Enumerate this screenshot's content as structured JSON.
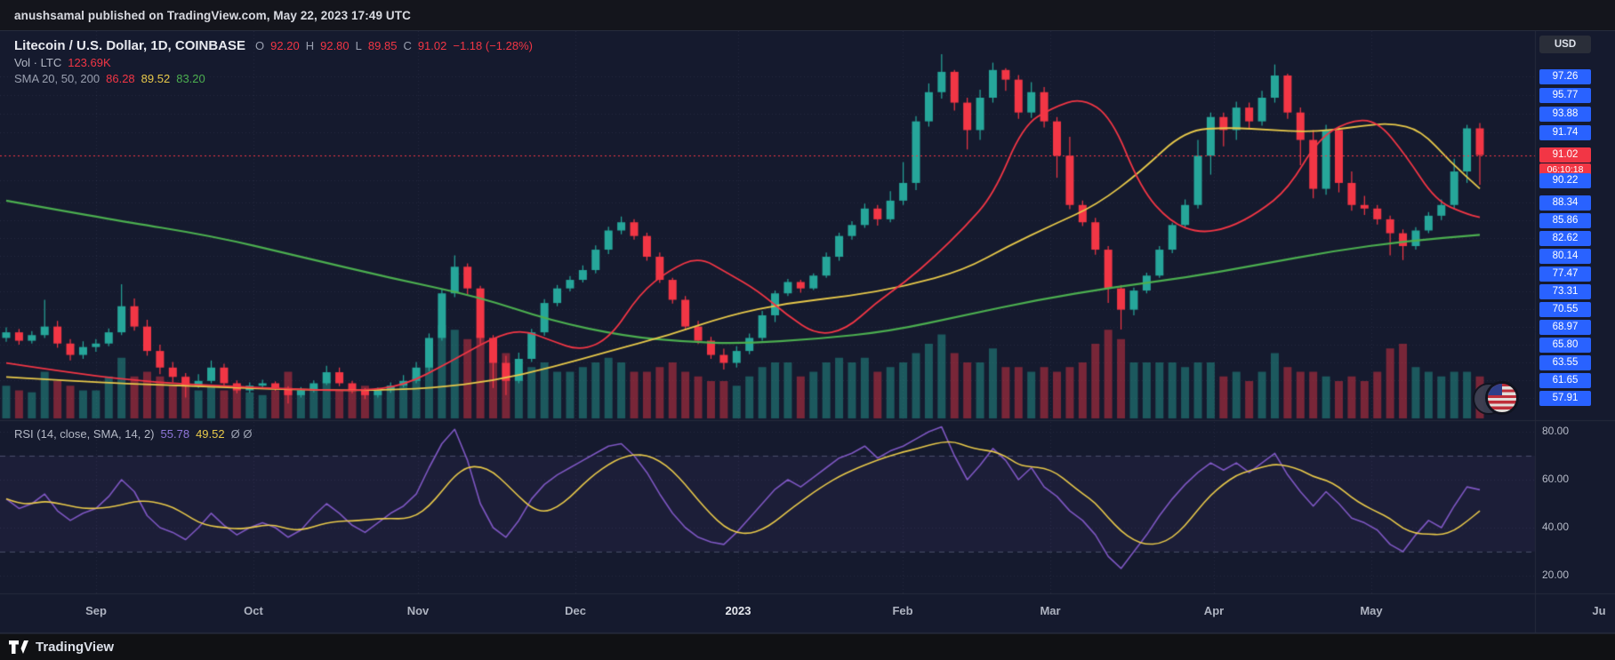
{
  "attribution_bar": {
    "text": "anushsamal published on TradingView.com, May 22, 2023 17:49 UTC"
  },
  "footer": {
    "brand": "TradingView"
  },
  "legend": {
    "symbol": "Litecoin / U.S. Dollar, 1D, COINBASE",
    "open_label": "O",
    "open": "92.20",
    "high_label": "H",
    "high": "92.80",
    "low_label": "L",
    "low": "89.85",
    "close_label": "C",
    "close": "91.02",
    "change": "−1.18 (−1.28%)",
    "vol_label": "Vol · LTC",
    "vol_value": "123.69K",
    "sma_label": "SMA 20, 50, 200",
    "sma20": "86.28",
    "sma50": "89.52",
    "sma200": "83.20"
  },
  "rsi_legend": {
    "label": "RSI (14, close, SMA, 14, 2)",
    "value": "55.78",
    "sma_value": "49.52",
    "bands": "Ø Ø"
  },
  "axes": {
    "currency": "USD",
    "price_labels": [
      "97.26",
      "95.77",
      "93.88",
      "91.74",
      "90.22",
      "88.34",
      "85.86",
      "82.62",
      "80.14",
      "77.47",
      "73.31",
      "70.55",
      "68.97",
      "65.80",
      "63.55",
      "61.65",
      "57.91"
    ],
    "last_price": "91.02",
    "countdown": "06:10:18",
    "rsi_labels": [
      "80.00",
      "60.00",
      "40.00",
      "20.00"
    ],
    "time_labels": [
      "Sep",
      "Oct",
      "Nov",
      "Dec",
      "2023",
      "Feb",
      "Mar",
      "Apr",
      "May",
      "Ju"
    ]
  },
  "colors": {
    "up": "#26a69a",
    "down": "#f23645",
    "sma20": "#f23645",
    "sma50": "#e8c94a",
    "sma200": "#4caf50",
    "rsi": "#7e57c2",
    "rsi_sma": "#e8c94a",
    "axis_chip": "#2962ff",
    "last_chip": "#f23645"
  },
  "chart_data": {
    "type": "candlestick",
    "symbol": "LTC/USD",
    "exchange": "COINBASE",
    "interval": "1D",
    "title": "Litecoin / U.S. Dollar, 1D, COINBASE",
    "last_bar": {
      "open": 92.2,
      "high": 92.8,
      "low": 89.85,
      "close": 91.02,
      "change": -1.18,
      "change_pct": -1.28
    },
    "volume_last": "123.69K",
    "sma_last": {
      "sma20": 86.28,
      "sma50": 89.52,
      "sma200": 83.2
    },
    "rsi_last": {
      "rsi": 55.78,
      "sma": 49.52
    },
    "price_axis_ticks": [
      97.26,
      95.77,
      93.88,
      91.74,
      90.22,
      88.34,
      85.86,
      82.62,
      80.14,
      77.47,
      73.31,
      70.55,
      68.97,
      65.8,
      63.55,
      61.65,
      57.91
    ],
    "rsi_axis_ticks": [
      80,
      60,
      40,
      20
    ],
    "rsi_band_levels": [
      70,
      30
    ],
    "x_axis_labels": [
      "Sep",
      "Oct",
      "Nov",
      "Dec",
      "2023",
      "Feb",
      "Mar",
      "Apr",
      "May",
      "Jun"
    ],
    "candles": [
      [
        67,
        68.9,
        66.3,
        68,
        0.35
      ],
      [
        68,
        68.6,
        65.8,
        66.5,
        0.3
      ],
      [
        66.5,
        68.2,
        66,
        67.5,
        0.28
      ],
      [
        67.5,
        72,
        67,
        69,
        0.5
      ],
      [
        69,
        69.5,
        65.4,
        66,
        0.4
      ],
      [
        66,
        66.8,
        63.8,
        64.5,
        0.35
      ],
      [
        64.5,
        66.4,
        64,
        65.5,
        0.3
      ],
      [
        65.5,
        66.8,
        64.9,
        66,
        0.3
      ],
      [
        66,
        68.7,
        65.6,
        68,
        0.45
      ],
      [
        68,
        75,
        67.5,
        71,
        0.65
      ],
      [
        71,
        72.2,
        68.3,
        69,
        0.45
      ],
      [
        69,
        69.6,
        64.4,
        65,
        0.5
      ],
      [
        65,
        65.8,
        62.3,
        63,
        0.45
      ],
      [
        63,
        63.6,
        61.2,
        62,
        0.35
      ],
      [
        62,
        62.4,
        58,
        60.5,
        0.45
      ],
      [
        60.5,
        62.3,
        60,
        61.5,
        0.3
      ],
      [
        61.5,
        63.8,
        61,
        63,
        0.35
      ],
      [
        63,
        63.4,
        60.4,
        61,
        0.3
      ],
      [
        61,
        61.6,
        58.9,
        59.5,
        0.35
      ],
      [
        59.5,
        61.2,
        59,
        60.5,
        0.28
      ],
      [
        60.5,
        61.7,
        59.9,
        61,
        0.25
      ],
      [
        61,
        61.4,
        59.4,
        60,
        0.3
      ],
      [
        60,
        60.4,
        56.5,
        58.5,
        0.5
      ],
      [
        58.5,
        60.2,
        58,
        59.5,
        0.3
      ],
      [
        59.5,
        61.6,
        59.1,
        61,
        0.35
      ],
      [
        61,
        63.2,
        60.6,
        62.5,
        0.4
      ],
      [
        62.5,
        63,
        60.4,
        61,
        0.3
      ],
      [
        61,
        61.5,
        58.9,
        59.5,
        0.3
      ],
      [
        59.5,
        60,
        57.6,
        58.5,
        0.35
      ],
      [
        58.5,
        60.1,
        58,
        59.5,
        0.28
      ],
      [
        59.5,
        61.2,
        59,
        60.5,
        0.3
      ],
      [
        60.5,
        62.2,
        60.1,
        61.5,
        0.35
      ],
      [
        61.5,
        63.6,
        61,
        63,
        0.45
      ],
      [
        63,
        67.8,
        62.6,
        67,
        0.8
      ],
      [
        67,
        73.9,
        66.5,
        73,
        1
      ],
      [
        73,
        80.2,
        72.4,
        78.5,
        0.95
      ],
      [
        78.5,
        79,
        72.8,
        74,
        0.85
      ],
      [
        74,
        74.6,
        65.9,
        67,
        0.9
      ],
      [
        67,
        67.5,
        60,
        63.5,
        0.85
      ],
      [
        63.5,
        64.4,
        58.5,
        61.5,
        0.7
      ],
      [
        61.5,
        64.8,
        61,
        64,
        0.5
      ],
      [
        64,
        68.6,
        63.6,
        68,
        0.55
      ],
      [
        68,
        72.1,
        67.4,
        71.5,
        0.6
      ],
      [
        71.5,
        74.8,
        71,
        74,
        0.5
      ],
      [
        74,
        76.9,
        73.3,
        76,
        0.5
      ],
      [
        76,
        78.7,
        75.4,
        78,
        0.55
      ],
      [
        78,
        81.6,
        77.5,
        81,
        0.6
      ],
      [
        81,
        84.7,
        80.4,
        84,
        0.65
      ],
      [
        84,
        86.4,
        83.3,
        85.5,
        0.6
      ],
      [
        85.5,
        86,
        82.4,
        83,
        0.5
      ],
      [
        83,
        83.6,
        79.4,
        80,
        0.5
      ],
      [
        80,
        80.6,
        75.3,
        76,
        0.55
      ],
      [
        76,
        76.5,
        71.4,
        72,
        0.6
      ],
      [
        72,
        72.6,
        68.4,
        69,
        0.5
      ],
      [
        69,
        69.5,
        65.9,
        66.5,
        0.45
      ],
      [
        66.5,
        67.2,
        64,
        64.5,
        0.4
      ],
      [
        64.5,
        65.3,
        62.8,
        63.5,
        0.4
      ],
      [
        63.5,
        65.6,
        63,
        65,
        0.35
      ],
      [
        65,
        67.8,
        64.6,
        67,
        0.45
      ],
      [
        67,
        70.4,
        66.5,
        70,
        0.55
      ],
      [
        70,
        73.5,
        69.4,
        73,
        0.6
      ],
      [
        73,
        76.2,
        72.6,
        75.5,
        0.6
      ],
      [
        75.5,
        76,
        73.1,
        74,
        0.45
      ],
      [
        74,
        77.5,
        73.6,
        77,
        0.5
      ],
      [
        77,
        80.6,
        76.5,
        80,
        0.6
      ],
      [
        80,
        83.6,
        79.4,
        83,
        0.65
      ],
      [
        83,
        85.7,
        82.4,
        85,
        0.6
      ],
      [
        85,
        88.2,
        84.5,
        87.5,
        0.65
      ],
      [
        87.5,
        88,
        84.9,
        86,
        0.5
      ],
      [
        86,
        89.3,
        85.5,
        88.5,
        0.55
      ],
      [
        88.5,
        90.8,
        88,
        90,
        0.6
      ],
      [
        90,
        93.6,
        89.4,
        93,
        0.7
      ],
      [
        93,
        96.7,
        92.4,
        96,
        0.8
      ],
      [
        96,
        103.3,
        95.4,
        98.5,
        0.9
      ],
      [
        98.5,
        99,
        94.2,
        95,
        0.7
      ],
      [
        95,
        95.5,
        91.2,
        92,
        0.6
      ],
      [
        92,
        96.2,
        91.5,
        95.5,
        0.6
      ],
      [
        95.5,
        101,
        95,
        99,
        0.75
      ],
      [
        99,
        99.5,
        96.1,
        97,
        0.55
      ],
      [
        97,
        97.6,
        93.3,
        94,
        0.55
      ],
      [
        94,
        96.8,
        93.4,
        96,
        0.5
      ],
      [
        96,
        96.4,
        92.3,
        93,
        0.55
      ],
      [
        93,
        93.5,
        90.3,
        91,
        0.5
      ],
      [
        91,
        91.6,
        87.4,
        88,
        0.55
      ],
      [
        88,
        88.5,
        84.8,
        85.5,
        0.6
      ],
      [
        85.5,
        86.2,
        80.3,
        81,
        0.8
      ],
      [
        81,
        81.5,
        71.5,
        74,
        0.95
      ],
      [
        74,
        74.8,
        68.5,
        70.5,
        0.85
      ],
      [
        70.5,
        74.2,
        70,
        73.5,
        0.6
      ],
      [
        73.5,
        77.6,
        73,
        77,
        0.6
      ],
      [
        77,
        81.5,
        76.5,
        81,
        0.6
      ],
      [
        81,
        85.4,
        80.5,
        85,
        0.6
      ],
      [
        85,
        88.6,
        84.4,
        88,
        0.55
      ],
      [
        88,
        91.5,
        87.5,
        91,
        0.6
      ],
      [
        91,
        94,
        90.4,
        93.5,
        0.6
      ],
      [
        93.5,
        94,
        91.3,
        92,
        0.45
      ],
      [
        92,
        95.1,
        91.5,
        94.5,
        0.5
      ],
      [
        94.5,
        95,
        92.2,
        93,
        0.4
      ],
      [
        93,
        96.1,
        92.5,
        95.5,
        0.5
      ],
      [
        95.5,
        100.5,
        95,
        97.5,
        0.7
      ],
      [
        97.5,
        98,
        93.3,
        94,
        0.55
      ],
      [
        94,
        94.5,
        90.7,
        91.5,
        0.5
      ],
      [
        91.5,
        92,
        88.7,
        89.5,
        0.5
      ],
      [
        89.5,
        92.6,
        89,
        92,
        0.45
      ],
      [
        92,
        92.4,
        89.2,
        90,
        0.4
      ],
      [
        90,
        90.5,
        87.2,
        88,
        0.45
      ],
      [
        88,
        88.9,
        86.6,
        87.5,
        0.4
      ],
      [
        87.5,
        88,
        85.1,
        86,
        0.5
      ],
      [
        86,
        86.5,
        80.2,
        83.5,
        0.75
      ],
      [
        83.5,
        84.2,
        79.5,
        81.5,
        0.8
      ],
      [
        81.5,
        84.6,
        81,
        84,
        0.55
      ],
      [
        84,
        87,
        83.5,
        86.5,
        0.5
      ],
      [
        86.5,
        88.6,
        85.9,
        88,
        0.45
      ],
      [
        88,
        90.9,
        87.4,
        90.5,
        0.5
      ],
      [
        90.5,
        92.6,
        90,
        92.2,
        0.5
      ],
      [
        92.2,
        92.8,
        89.85,
        91.02,
        0.45
      ]
    ],
    "rsi": [
      52,
      48,
      50,
      54,
      47,
      43,
      46,
      48,
      53,
      60,
      55,
      45,
      40,
      38,
      35,
      40,
      46,
      41,
      37,
      40,
      42,
      40,
      36,
      39,
      45,
      50,
      46,
      41,
      38,
      42,
      46,
      49,
      54,
      65,
      75,
      81,
      68,
      50,
      40,
      36,
      43,
      52,
      58,
      62,
      65,
      68,
      71,
      74,
      75,
      70,
      63,
      54,
      46,
      40,
      36,
      34,
      33,
      38,
      44,
      50,
      56,
      60,
      57,
      61,
      65,
      69,
      71,
      74,
      69,
      72,
      74,
      77,
      80,
      82,
      70,
      60,
      66,
      73,
      68,
      60,
      65,
      57,
      53,
      47,
      43,
      37,
      28,
      23,
      30,
      37,
      45,
      52,
      58,
      63,
      67,
      64,
      67,
      63,
      67,
      71,
      62,
      55,
      49,
      55,
      50,
      44,
      42,
      39,
      33,
      30,
      37,
      43,
      40,
      49,
      57,
      55.78
    ],
    "sma20_path": [
      [
        0,
        63.5
      ],
      [
        0.05,
        62.3
      ],
      [
        0.1,
        61.2
      ],
      [
        0.15,
        60.4
      ],
      [
        0.2,
        59.7
      ],
      [
        0.24,
        59.4
      ],
      [
        0.27,
        60.5
      ],
      [
        0.3,
        63.5
      ],
      [
        0.33,
        67
      ],
      [
        0.35,
        68.5
      ],
      [
        0.37,
        66.5
      ],
      [
        0.39,
        65
      ],
      [
        0.41,
        67
      ],
      [
        0.43,
        73
      ],
      [
        0.45,
        78
      ],
      [
        0.47,
        80
      ],
      [
        0.49,
        77.5
      ],
      [
        0.51,
        73.5
      ],
      [
        0.53,
        70
      ],
      [
        0.55,
        67.5
      ],
      [
        0.57,
        68.5
      ],
      [
        0.59,
        71.5
      ],
      [
        0.61,
        75.5
      ],
      [
        0.63,
        80
      ],
      [
        0.65,
        84.5
      ],
      [
        0.67,
        89
      ],
      [
        0.69,
        92.5
      ],
      [
        0.71,
        94.5
      ],
      [
        0.73,
        95.5
      ],
      [
        0.75,
        93.5
      ],
      [
        0.77,
        89.5
      ],
      [
        0.79,
        85.5
      ],
      [
        0.81,
        83.5
      ],
      [
        0.83,
        84.5
      ],
      [
        0.85,
        87
      ],
      [
        0.87,
        89.5
      ],
      [
        0.89,
        91.5
      ],
      [
        0.91,
        93
      ],
      [
        0.93,
        93.2
      ],
      [
        0.95,
        91
      ],
      [
        0.97,
        88.5
      ],
      [
        0.99,
        86.8
      ],
      [
        1,
        86.28
      ]
    ],
    "sma50_path": [
      [
        0,
        62
      ],
      [
        0.06,
        61.2
      ],
      [
        0.12,
        60.5
      ],
      [
        0.18,
        59.8
      ],
      [
        0.24,
        59.4
      ],
      [
        0.29,
        60
      ],
      [
        0.33,
        61.5
      ],
      [
        0.37,
        63
      ],
      [
        0.41,
        65
      ],
      [
        0.45,
        67.5
      ],
      [
        0.49,
        70
      ],
      [
        0.53,
        71.5
      ],
      [
        0.57,
        72.5
      ],
      [
        0.61,
        74.5
      ],
      [
        0.65,
        78
      ],
      [
        0.68,
        81.5
      ],
      [
        0.71,
        85
      ],
      [
        0.74,
        88
      ],
      [
        0.77,
        90.5
      ],
      [
        0.8,
        92
      ],
      [
        0.83,
        92.3
      ],
      [
        0.86,
        92
      ],
      [
        0.88,
        91.8
      ],
      [
        0.9,
        92
      ],
      [
        0.92,
        92.5
      ],
      [
        0.94,
        92.8
      ],
      [
        0.96,
        92
      ],
      [
        0.98,
        90.8
      ],
      [
        1,
        89.52
      ]
    ],
    "sma200_path": [
      [
        0,
        88.5
      ],
      [
        0.07,
        86
      ],
      [
        0.14,
        83
      ],
      [
        0.2,
        80
      ],
      [
        0.26,
        76.5
      ],
      [
        0.32,
        72.5
      ],
      [
        0.37,
        69.5
      ],
      [
        0.42,
        67.3
      ],
      [
        0.46,
        66.3
      ],
      [
        0.5,
        66
      ],
      [
        0.55,
        66.8
      ],
      [
        0.6,
        68.2
      ],
      [
        0.65,
        70
      ],
      [
        0.7,
        72
      ],
      [
        0.75,
        74.2
      ],
      [
        0.8,
        76.5
      ],
      [
        0.85,
        78.8
      ],
      [
        0.9,
        80.8
      ],
      [
        0.95,
        82.2
      ],
      [
        1,
        83.2
      ]
    ]
  }
}
